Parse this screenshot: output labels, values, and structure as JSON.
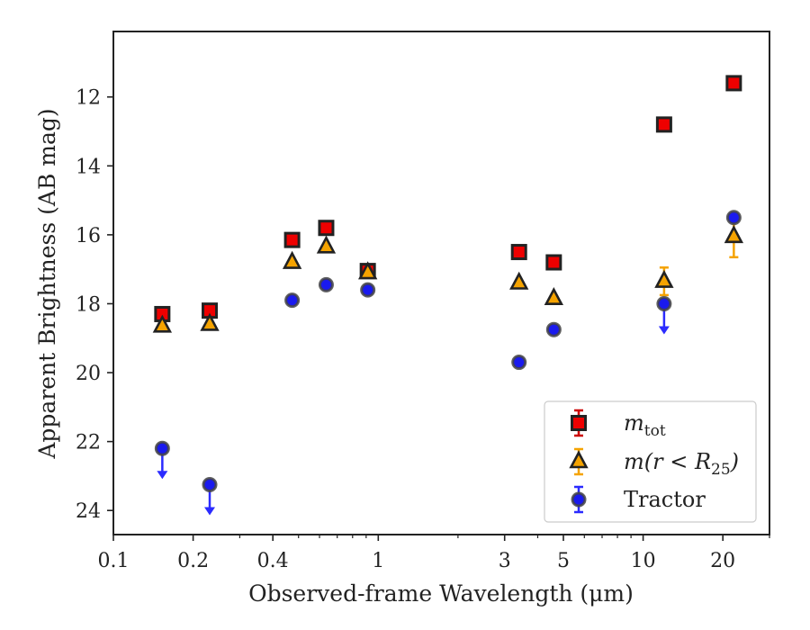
{
  "chart_data": {
    "type": "scatter",
    "title": "",
    "xlabel": "Observed-frame Wavelength (μm)",
    "ylabel": "Apparent Brightness (AB mag)",
    "x_scale": "log",
    "y_inverted": true,
    "xlim": [
      0.1,
      30
    ],
    "ylim": [
      24.7,
      10.1
    ],
    "grid": false,
    "legend_position": "lower-right",
    "x_ticks": [
      {
        "value": 0.1,
        "label": "0.1"
      },
      {
        "value": 0.2,
        "label": "0.2"
      },
      {
        "value": 0.4,
        "label": "0.4"
      },
      {
        "value": 1,
        "label": "1"
      },
      {
        "value": 3,
        "label": "3"
      },
      {
        "value": 5,
        "label": "5"
      },
      {
        "value": 10,
        "label": "10"
      },
      {
        "value": 20,
        "label": "20"
      }
    ],
    "y_ticks": [
      {
        "value": 12,
        "label": "12"
      },
      {
        "value": 14,
        "label": "14"
      },
      {
        "value": 16,
        "label": "16"
      },
      {
        "value": 18,
        "label": "18"
      },
      {
        "value": 20,
        "label": "20"
      },
      {
        "value": 22,
        "label": "22"
      },
      {
        "value": 24,
        "label": "24"
      }
    ],
    "series": [
      {
        "name": "m_tot",
        "legend_main": "m",
        "legend_sub": "tot",
        "marker": "square",
        "color": "#ee0000",
        "error_color": "#cc0000",
        "points": [
          {
            "x": 0.153,
            "y": 18.3
          },
          {
            "x": 0.231,
            "y": 18.2
          },
          {
            "x": 0.473,
            "y": 16.15
          },
          {
            "x": 0.636,
            "y": 15.8
          },
          {
            "x": 0.913,
            "y": 17.05
          },
          {
            "x": 3.4,
            "y": 16.5
          },
          {
            "x": 4.6,
            "y": 16.8
          },
          {
            "x": 12.0,
            "y": 12.8
          },
          {
            "x": 22.0,
            "y": 11.6
          }
        ]
      },
      {
        "name": "m(r<R_25)",
        "legend_main": "m(r < R",
        "legend_sub": "25",
        "legend_tail": ")",
        "marker": "triangle",
        "color": "#f5a300",
        "error_color": "#f5a300",
        "points": [
          {
            "x": 0.153,
            "y": 18.65
          },
          {
            "x": 0.231,
            "y": 18.6
          },
          {
            "x": 0.473,
            "y": 16.8
          },
          {
            "x": 0.636,
            "y": 16.35
          },
          {
            "x": 0.913,
            "y": 17.1
          },
          {
            "x": 3.4,
            "y": 17.4
          },
          {
            "x": 4.6,
            "y": 17.85
          },
          {
            "x": 12.0,
            "y": 17.35,
            "err": 0.4
          },
          {
            "x": 22.0,
            "y": 16.05,
            "err": 0.6
          }
        ]
      },
      {
        "name": "Tractor",
        "legend_main": "Tractor",
        "marker": "circle",
        "color": "#1a1aee",
        "error_color": "#2b2bff",
        "points": [
          {
            "x": 0.153,
            "y": 22.2,
            "upper_limit": true
          },
          {
            "x": 0.231,
            "y": 23.25,
            "upper_limit": true
          },
          {
            "x": 0.473,
            "y": 17.9
          },
          {
            "x": 0.636,
            "y": 17.45
          },
          {
            "x": 0.913,
            "y": 17.6
          },
          {
            "x": 3.4,
            "y": 19.7
          },
          {
            "x": 4.6,
            "y": 18.75
          },
          {
            "x": 12.0,
            "y": 18.0,
            "upper_limit": true
          },
          {
            "x": 22.0,
            "y": 15.5
          }
        ]
      }
    ]
  }
}
